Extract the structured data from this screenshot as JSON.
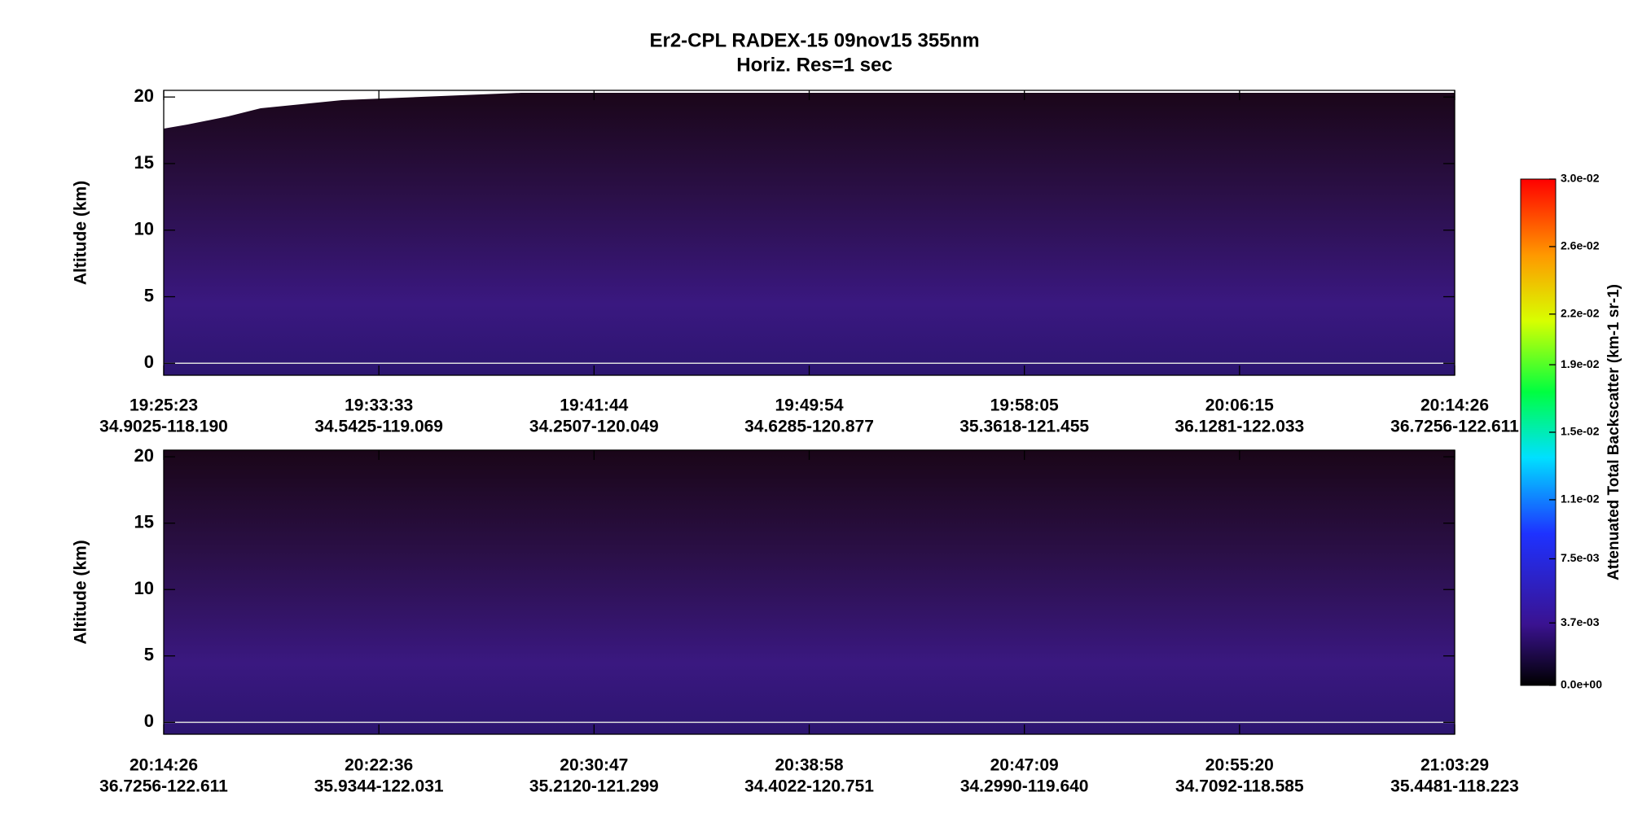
{
  "chart_data": {
    "type": "heatmap",
    "title": "Er2-CPL  RADEX-15  09nov15  355nm",
    "subtitle": "Horiz. Res=1 sec",
    "panels": [
      {
        "ylabel": "Altitude (km)",
        "ylim": [
          -0.9,
          20.5
        ],
        "yticks": [
          0,
          5,
          10,
          15,
          20
        ],
        "categories": [
          "19:25:23",
          "19:33:33",
          "19:41:44",
          "19:49:54",
          "19:58:05",
          "20:06:15",
          "20:14:26"
        ],
        "locations": [
          "34.9025-118.190",
          "34.5425-119.069",
          "34.2507-120.049",
          "34.6285-120.877",
          "35.3618-121.455",
          "36.1281-122.033",
          "36.7256-122.611"
        ]
      },
      {
        "ylabel": "Altitude (km)",
        "ylim": [
          -0.9,
          20.5
        ],
        "yticks": [
          0,
          5,
          10,
          15,
          20
        ],
        "categories": [
          "20:14:26",
          "20:22:36",
          "20:30:47",
          "20:38:58",
          "20:47:09",
          "20:55:20",
          "21:03:29"
        ],
        "locations": [
          "36.7256-122.611",
          "35.9344-122.031",
          "35.2120-121.299",
          "34.4022-120.751",
          "34.2990-119.640",
          "34.7092-118.585",
          "35.4481-118.223"
        ]
      }
    ],
    "colorbar": {
      "label": "Attenuated Total Backscatter (km-1 sr-1)",
      "lim": [
        0,
        0.03
      ],
      "ticks": [
        {
          "value": 0,
          "label": "0.0e+00"
        },
        {
          "value": 0.0037,
          "label": "3.7e-03"
        },
        {
          "value": 0.0075,
          "label": "7.5e-03"
        },
        {
          "value": 0.011,
          "label": "1.1e-02"
        },
        {
          "value": 0.015,
          "label": "1.5e-02"
        },
        {
          "value": 0.019,
          "label": "1.9e-02"
        },
        {
          "value": 0.022,
          "label": "2.2e-02"
        },
        {
          "value": 0.026,
          "label": "2.6e-02"
        },
        {
          "value": 0.03,
          "label": "3.0e-02"
        }
      ]
    }
  }
}
